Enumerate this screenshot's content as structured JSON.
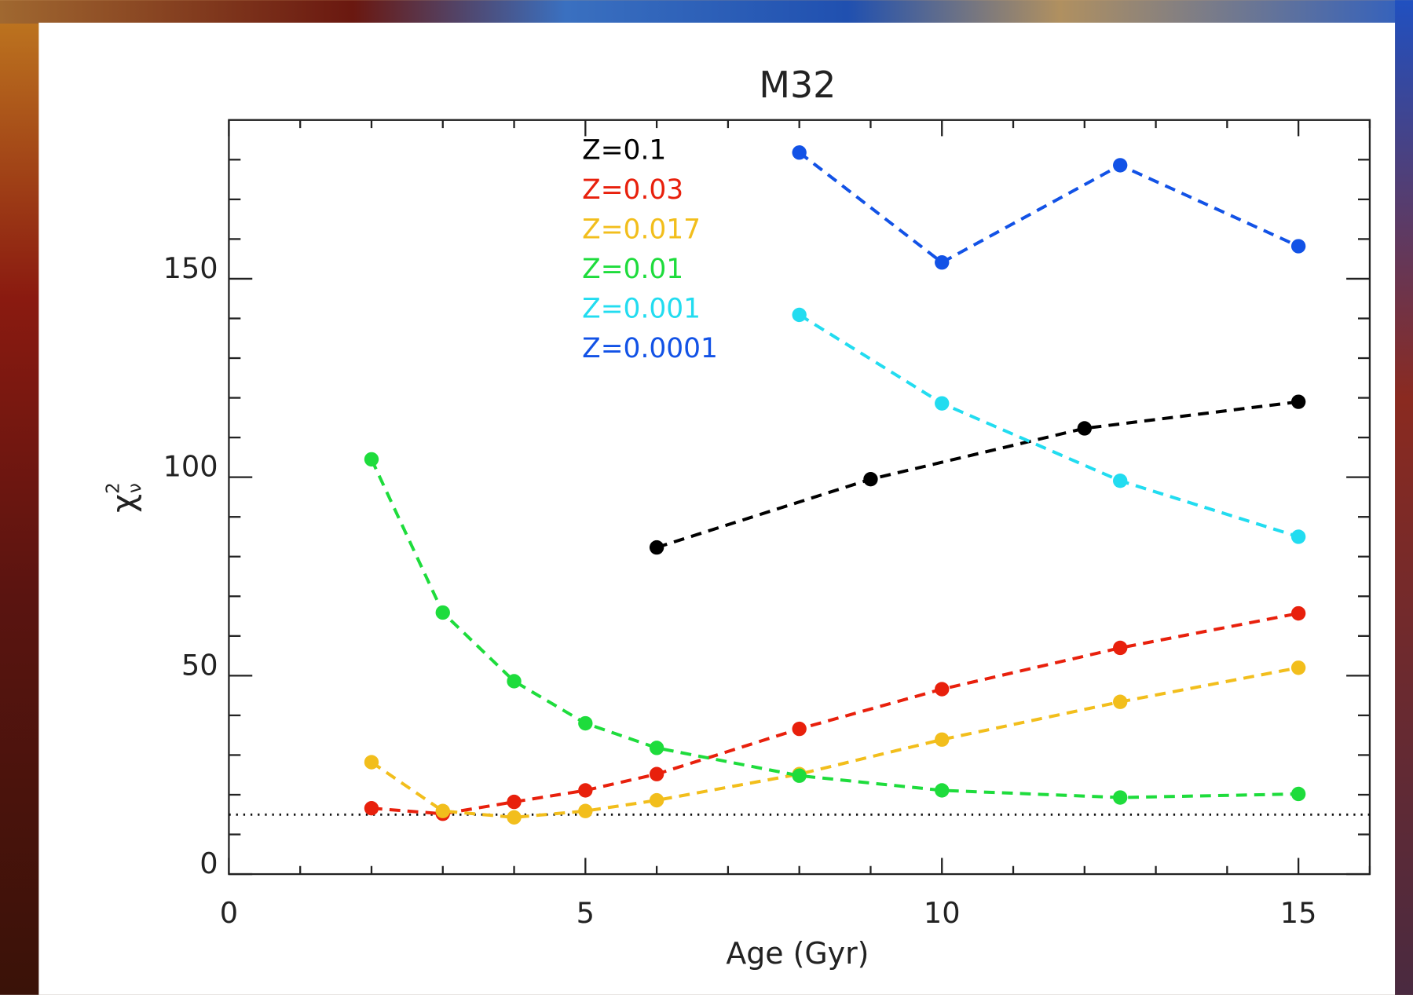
{
  "chart_data": {
    "type": "line",
    "title": "M32",
    "xlabel": "Age (Gyr)",
    "ylabel": {
      "symbol": "χ",
      "sup": "2",
      "sub": "ν"
    },
    "xlim": [
      0,
      16
    ],
    "xticks": [
      0,
      5,
      10,
      15
    ],
    "xminorticks": [
      1,
      2,
      3,
      4,
      6,
      7,
      8,
      9,
      11,
      12,
      13,
      14,
      16
    ],
    "ylim": [
      0,
      190
    ],
    "yticks": [
      0,
      50,
      100,
      150
    ],
    "yminorticks": [
      10,
      20,
      30,
      40,
      60,
      70,
      80,
      90,
      110,
      120,
      130,
      140,
      160,
      170,
      180
    ],
    "reference_line": 15,
    "series": [
      {
        "name": "Z=0.1",
        "color": "#000000",
        "x": [
          6,
          9,
          12,
          15
        ],
        "values": [
          82.3,
          99.5,
          112.3,
          119
        ]
      },
      {
        "name": "Z=0.03",
        "color": "#e8200c",
        "x": [
          2,
          3,
          4,
          5,
          6,
          8,
          10,
          12.5,
          15
        ],
        "values": [
          16.6,
          15.2,
          18.2,
          21.1,
          25.2,
          36.6,
          46.6,
          57,
          65.7
        ]
      },
      {
        "name": "Z=0.017",
        "color": "#f2be1c",
        "x": [
          2,
          3,
          4,
          5,
          6,
          8,
          10,
          12.5,
          15
        ],
        "values": [
          28.2,
          15.9,
          14.3,
          15.9,
          18.6,
          25.2,
          33.9,
          43.4,
          52
        ]
      },
      {
        "name": "Z=0.01",
        "color": "#1edc3c",
        "x": [
          2,
          3,
          4,
          5,
          6,
          8,
          10,
          12.5,
          15
        ],
        "values": [
          104.5,
          65.9,
          48.6,
          38,
          31.8,
          24.8,
          21.1,
          19.3,
          20.2
        ]
      },
      {
        "name": "Z=0.001",
        "color": "#22dcf0",
        "x": [
          8,
          10,
          12.5,
          15
        ],
        "values": [
          140.9,
          118.6,
          99.1,
          85
        ]
      },
      {
        "name": "Z=0.0001",
        "color": "#1252e6",
        "x": [
          8,
          10,
          12.5,
          15
        ],
        "values": [
          181.8,
          154.1,
          178.6,
          158.2
        ]
      }
    ]
  }
}
